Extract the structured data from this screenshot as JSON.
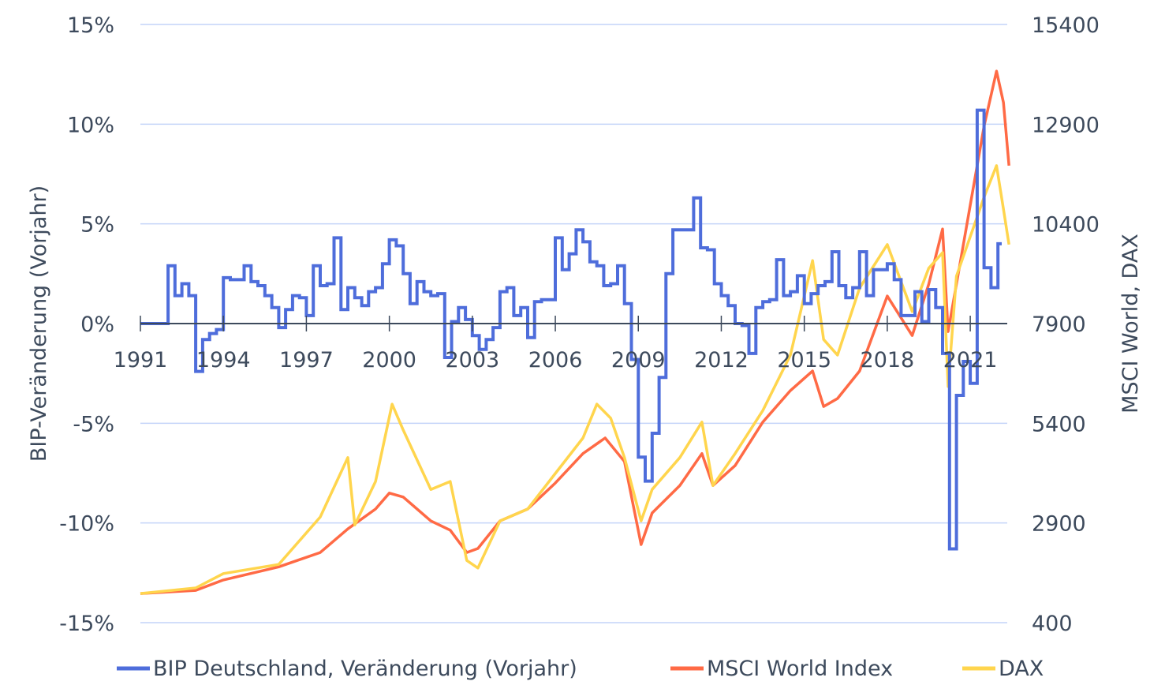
{
  "chart_data": {
    "type": "line",
    "title": "",
    "xlabel": "",
    "ylabel_left": "BIP-Veränderung (Vorjahr)",
    "ylabel_right": "MSCI World, DAX",
    "x_ticks": [
      "1991",
      "1994",
      "1997",
      "2000",
      "2003",
      "2006",
      "2009",
      "2012",
      "2015",
      "2018",
      "2021"
    ],
    "x_tick_years": [
      1991,
      1994,
      1997,
      2000,
      2003,
      2006,
      2009,
      2012,
      2015,
      2018,
      2021
    ],
    "y_left_ticks": [
      "15%",
      "10%",
      "5%",
      "0%",
      "-5%",
      "-10%",
      "-15%"
    ],
    "y_left_tick_values": [
      15,
      10,
      5,
      0,
      -5,
      -10,
      -15
    ],
    "y_left_lim": [
      -15,
      15
    ],
    "y_right_ticks": [
      "15400",
      "12900",
      "10400",
      "7900",
      "5400",
      "2900",
      "400"
    ],
    "y_right_tick_values": [
      15400,
      12900,
      10400,
      7900,
      5400,
      2900,
      400
    ],
    "y_right_lim": [
      400,
      15400
    ],
    "x_range": [
      1991,
      2022.4
    ],
    "grid": true,
    "legend_position": "bottom",
    "colors": {
      "gdp": "#4e6ddb",
      "msci": "#ff6a45",
      "dax": "#ffd54d",
      "grid": "#c4d4f9",
      "axis": "#3d4a5c"
    },
    "series": [
      {
        "name": "BIP Deutschland, Veränderung (Vorjahr)",
        "axis": "left",
        "style": "step",
        "frequency": "quarterly",
        "start": "1991 Q1",
        "values": [
          0,
          0,
          0,
          0,
          2.9,
          1.4,
          2.0,
          1.4,
          -2.4,
          -0.8,
          -0.5,
          -0.3,
          2.3,
          2.2,
          2.2,
          2.9,
          2.1,
          1.9,
          1.4,
          0.8,
          -0.2,
          0.7,
          1.4,
          1.3,
          0.4,
          2.9,
          1.9,
          2.0,
          4.3,
          0.7,
          1.8,
          1.3,
          0.9,
          1.6,
          1.8,
          3.0,
          4.2,
          3.9,
          2.5,
          1.0,
          2.1,
          1.6,
          1.4,
          1.5,
          -1.7,
          0.1,
          0.8,
          0.2,
          -0.6,
          -1.3,
          -0.8,
          -0.2,
          1.6,
          1.8,
          0.4,
          0.8,
          -0.7,
          1.1,
          1.2,
          1.2,
          4.3,
          2.7,
          3.5,
          4.7,
          4.1,
          3.1,
          2.9,
          1.9,
          2.0,
          2.9,
          1.0,
          -1.8,
          -6.7,
          -7.9,
          -5.5,
          -2.7,
          2.5,
          4.7,
          4.7,
          4.7,
          6.3,
          3.8,
          3.7,
          2.0,
          1.4,
          0.9,
          0.0,
          -0.1,
          -1.5,
          0.8,
          1.1,
          1.2,
          3.2,
          1.4,
          1.6,
          2.4,
          1.0,
          1.5,
          1.9,
          2.1,
          3.6,
          1.9,
          1.3,
          1.8,
          3.6,
          1.4,
          2.7,
          2.7,
          3.0,
          2.2,
          0.4,
          0.4,
          1.6,
          0.1,
          1.7,
          0.8,
          -1.5,
          -11.3,
          -3.6,
          -1.9,
          -3.0,
          10.7,
          2.8,
          1.8,
          4.0
        ]
      },
      {
        "name": "MSCI World Index",
        "axis": "right",
        "x": [
          1991.0,
          1993.0,
          1994.0,
          1996.0,
          1997.5,
          1998.5,
          1999.5,
          2000.0,
          2000.5,
          2001.5,
          2002.2,
          2002.8,
          2003.2,
          2004.0,
          2005.0,
          2006.0,
          2007.0,
          2007.8,
          2008.5,
          2009.1,
          2009.5,
          2010.5,
          2011.3,
          2011.7,
          2012.5,
          2013.5,
          2014.5,
          2015.3,
          2015.7,
          2016.2,
          2017.0,
          2018.0,
          2018.9,
          2019.5,
          2020.0,
          2020.2,
          2020.5,
          2021.0,
          2021.5,
          2021.95,
          2022.2,
          2022.4
        ],
        "values": [
          1130,
          1210,
          1470,
          1800,
          2160,
          2750,
          3250,
          3650,
          3550,
          2950,
          2720,
          2160,
          2260,
          2950,
          3250,
          3900,
          4640,
          5030,
          4440,
          2360,
          3150,
          3840,
          4640,
          3840,
          4340,
          5430,
          6220,
          6710,
          5820,
          6020,
          6710,
          8590,
          7600,
          8890,
          10270,
          7700,
          8890,
          10870,
          12850,
          14230,
          13440,
          11860
        ]
      },
      {
        "name": "DAX",
        "axis": "right",
        "x": [
          1991.0,
          1993.0,
          1994.0,
          1996.0,
          1997.5,
          1998.5,
          1998.75,
          1999.5,
          2000.1,
          2000.5,
          2001.5,
          2002.2,
          2002.8,
          2003.2,
          2004.0,
          2005.0,
          2006.0,
          2007.0,
          2007.5,
          2008.0,
          2008.5,
          2009.1,
          2009.5,
          2010.5,
          2011.3,
          2011.7,
          2012.5,
          2013.5,
          2014.5,
          2015.3,
          2015.7,
          2016.2,
          2017.0,
          2018.0,
          2018.9,
          2019.5,
          2020.0,
          2020.2,
          2020.5,
          2021.0,
          2021.5,
          2021.95,
          2022.2,
          2022.4
        ],
        "values": [
          1130,
          1270,
          1630,
          1860,
          3050,
          4540,
          2850,
          3940,
          5880,
          5230,
          3740,
          3940,
          1960,
          1770,
          2950,
          3250,
          4140,
          5030,
          5880,
          5530,
          4540,
          2950,
          3740,
          4540,
          5430,
          3840,
          4640,
          5720,
          7110,
          9480,
          7500,
          7110,
          8790,
          9880,
          8200,
          9290,
          9680,
          6320,
          9090,
          10080,
          11070,
          11860,
          10770,
          9880
        ]
      }
    ]
  }
}
